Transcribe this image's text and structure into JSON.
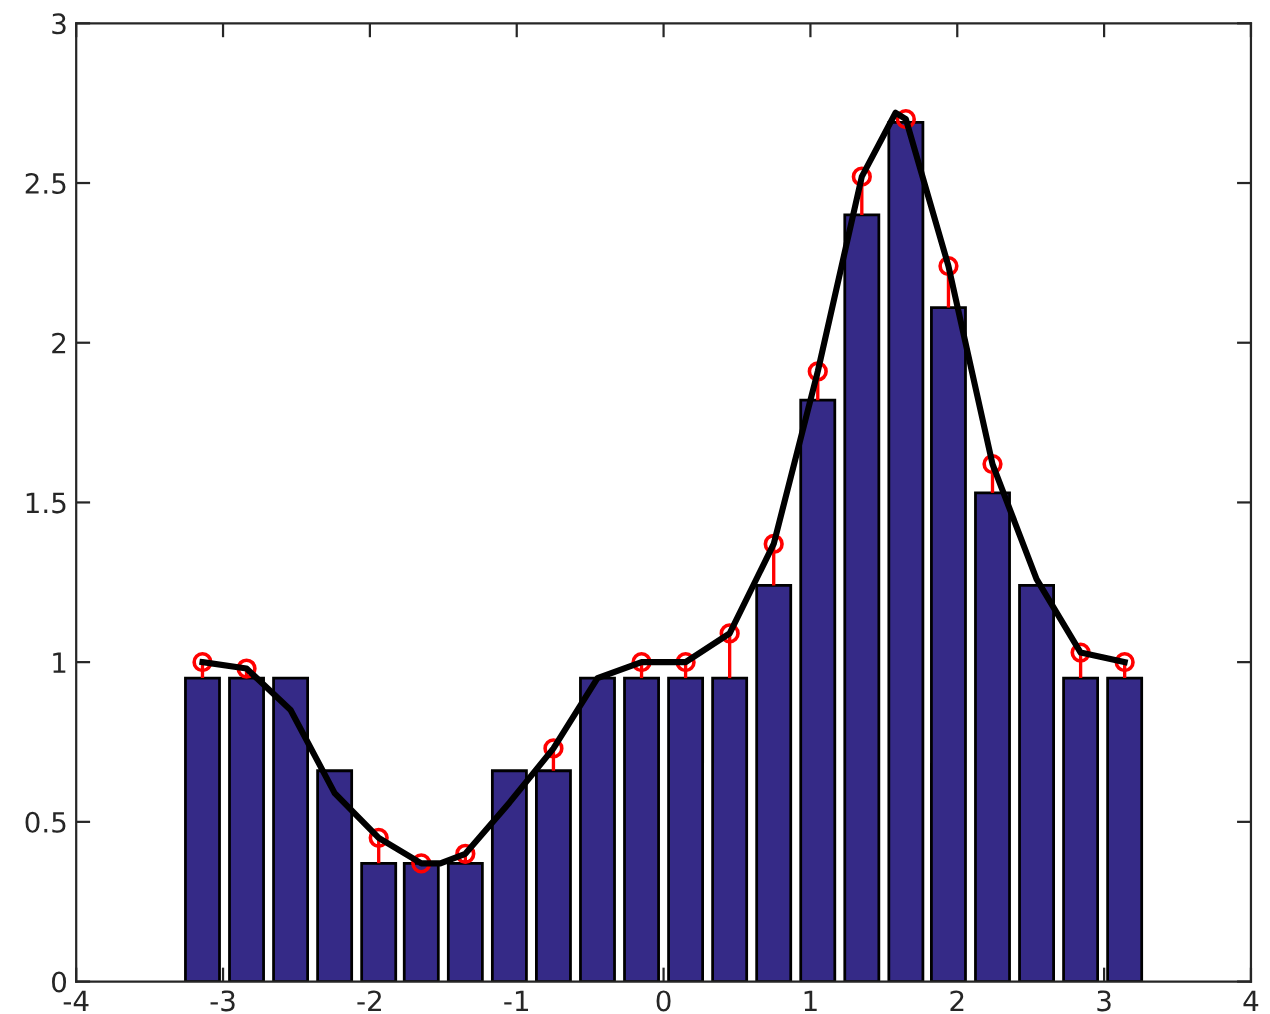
{
  "chart_data": {
    "type": "bar",
    "xlim": [
      -4,
      4
    ],
    "xticks": [
      -4,
      -3,
      -2,
      -1,
      0,
      1,
      2,
      3,
      4
    ],
    "ylim": [
      0,
      3
    ],
    "yticks": [
      0,
      0.5,
      1,
      1.5,
      2,
      2.5,
      3
    ],
    "grid": false,
    "legend": false,
    "x": [
      -3.14,
      -2.84,
      -2.54,
      -2.24,
      -1.94,
      -1.65,
      -1.35,
      -1.05,
      -0.75,
      -0.45,
      -0.15,
      0.15,
      0.45,
      0.75,
      1.05,
      1.35,
      1.65,
      1.94,
      2.24,
      2.54,
      2.84,
      3.14
    ],
    "series": [
      {
        "color": "#352a87",
        "values": [
          0.95,
          0.95,
          0.95,
          0.66,
          0.37,
          0.37,
          0.37,
          0.66,
          0.66,
          0.95,
          0.95,
          0.95,
          0.95,
          1.24,
          1.82,
          2.4,
          2.69,
          2.11,
          1.53,
          1.24,
          0.95,
          0.95
        ]
      },
      {
        "type": "scatter",
        "color": "#ff0000",
        "marker": "circle",
        "values": [
          1.0,
          0.98,
          null,
          null,
          0.45,
          0.37,
          0.4,
          null,
          0.73,
          null,
          1.0,
          1.0,
          1.09,
          1.37,
          1.91,
          2.52,
          2.7,
          2.24,
          1.62,
          null,
          1.03,
          1.0
        ],
        "errors": [
          [
            0.95,
            1.0
          ],
          [
            0.95,
            0.98
          ],
          null,
          null,
          [
            0.37,
            0.45
          ],
          [
            0.37,
            0.37
          ],
          [
            0.37,
            0.4
          ],
          null,
          [
            0.66,
            0.73
          ],
          null,
          [
            0.95,
            1.0
          ],
          [
            0.95,
            1.0
          ],
          [
            0.95,
            1.09
          ],
          [
            1.24,
            1.37
          ],
          [
            1.82,
            1.91
          ],
          [
            2.4,
            2.52
          ],
          [
            2.69,
            2.7
          ],
          [
            2.11,
            2.24
          ],
          [
            1.53,
            1.62
          ],
          null,
          [
            0.95,
            1.03
          ],
          [
            0.95,
            1.0
          ]
        ]
      },
      {
        "type": "line",
        "color": "#000000",
        "line_style": "solid",
        "marker": "none",
        "x": [
          -3.14,
          -2.84,
          -2.54,
          -2.24,
          -1.94,
          -1.65,
          -1.52,
          -1.35,
          -1.05,
          -0.75,
          -0.45,
          -0.15,
          0.15,
          0.45,
          0.75,
          1.05,
          1.35,
          1.58,
          1.65,
          1.94,
          2.24,
          2.54,
          2.84,
          3.14
        ],
        "values": [
          1.0,
          0.98,
          0.85,
          0.59,
          0.45,
          0.37,
          0.37,
          0.4,
          0.56,
          0.73,
          0.95,
          1.0,
          1.0,
          1.09,
          1.37,
          1.91,
          2.52,
          2.72,
          2.7,
          2.24,
          1.62,
          1.26,
          1.03,
          1.0
        ]
      }
    ]
  }
}
